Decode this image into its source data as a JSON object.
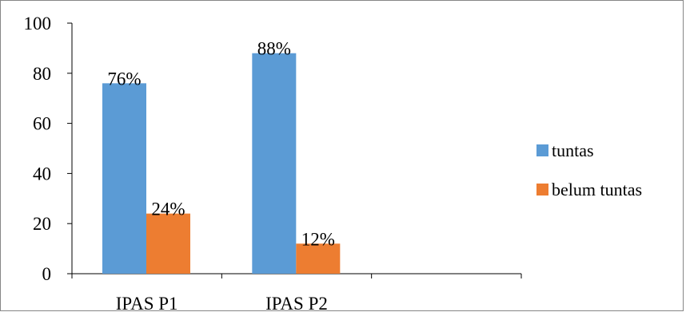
{
  "chart_data": {
    "type": "bar",
    "categories": [
      "IPAS P1",
      "IPAS P2",
      ""
    ],
    "series": [
      {
        "name": "tuntas",
        "values": [
          76,
          88,
          null
        ],
        "labels": [
          "76%",
          "88%",
          ""
        ],
        "color": "#5B9BD5"
      },
      {
        "name": "belum tuntas",
        "values": [
          24,
          12,
          null
        ],
        "labels": [
          "24%",
          "12%",
          ""
        ],
        "color": "#ED7D31"
      }
    ],
    "yticks": [
      "0",
      "20",
      "40",
      "60",
      "80",
      "100"
    ],
    "ylim": [
      0,
      100
    ],
    "grid": false,
    "legend_position": "right",
    "title": "",
    "xlabel": "",
    "ylabel": ""
  }
}
